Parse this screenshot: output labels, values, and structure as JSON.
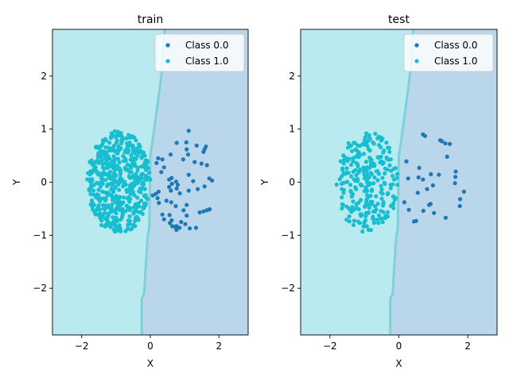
{
  "chart_data": [
    {
      "type": "scatter",
      "title": "train",
      "xlabel": "X",
      "ylabel": "Y",
      "xlim": [
        -2.85,
        2.85
      ],
      "ylim": [
        -2.88,
        2.88
      ],
      "xticks": [
        -2,
        0,
        2
      ],
      "yticks": [
        -2,
        -1,
        0,
        1,
        2
      ],
      "grid": false,
      "legend": "top-right",
      "region_colors": {
        "class_1": "#b8eaf0",
        "class_0": "#bad6ea",
        "boundary": "#7fd0dd"
      },
      "boundary": [
        [
          -0.25,
          -2.88
        ],
        [
          -0.25,
          -2.2
        ],
        [
          -0.18,
          -2.1
        ],
        [
          -0.08,
          -1.05
        ],
        [
          -0.03,
          -0.85
        ],
        [
          0.0,
          0.5
        ],
        [
          0.08,
          0.85
        ],
        [
          0.28,
          1.8
        ],
        [
          0.35,
          2.2
        ],
        [
          0.42,
          2.88
        ]
      ],
      "series": [
        {
          "name": "Class 0.0",
          "color": "#1f77b4",
          "points": [
            [
              1.12,
              0.97
            ],
            [
              1.05,
              0.75
            ],
            [
              0.77,
              0.74
            ],
            [
              1.35,
              0.69
            ],
            [
              1.62,
              0.67
            ],
            [
              1.58,
              0.62
            ],
            [
              1.06,
              0.62
            ],
            [
              1.55,
              0.57
            ],
            [
              1.1,
              0.52
            ],
            [
              0.59,
              0.52
            ],
            [
              0.96,
              0.43
            ],
            [
              0.23,
              0.45
            ],
            [
              0.35,
              0.43
            ],
            [
              0.18,
              0.36
            ],
            [
              1.29,
              0.38
            ],
            [
              1.49,
              0.35
            ],
            [
              1.65,
              0.32
            ],
            [
              0.4,
              0.28
            ],
            [
              0.32,
              0.19
            ],
            [
              1.12,
              0.14
            ],
            [
              0.62,
              0.08
            ],
            [
              0.55,
              0.05
            ],
            [
              1.72,
              0.07
            ],
            [
              0.75,
              0.01
            ],
            [
              0.63,
              -0.03
            ],
            [
              1.8,
              0.03
            ],
            [
              1.25,
              0.02
            ],
            [
              0.8,
              -0.05
            ],
            [
              0.55,
              -0.09
            ],
            [
              1.58,
              -0.08
            ],
            [
              1.38,
              -0.13
            ],
            [
              0.77,
              -0.12
            ],
            [
              1.12,
              -0.16
            ],
            [
              0.6,
              -0.16
            ],
            [
              0.24,
              -0.18
            ],
            [
              0.16,
              -0.22
            ],
            [
              0.86,
              -0.21
            ],
            [
              0.07,
              -0.25
            ],
            [
              0.21,
              -0.3
            ],
            [
              0.47,
              -0.35
            ],
            [
              0.61,
              -0.38
            ],
            [
              0.25,
              -0.39
            ],
            [
              1.06,
              -0.43
            ],
            [
              0.74,
              -0.45
            ],
            [
              1.73,
              -0.51
            ],
            [
              1.65,
              -0.53
            ],
            [
              0.97,
              -0.53
            ],
            [
              1.55,
              -0.55
            ],
            [
              1.44,
              -0.57
            ],
            [
              0.35,
              -0.61
            ],
            [
              0.56,
              -0.62
            ],
            [
              1.06,
              -0.63
            ],
            [
              0.4,
              -0.7
            ],
            [
              0.62,
              -0.72
            ],
            [
              0.9,
              -0.75
            ],
            [
              0.57,
              -0.77
            ],
            [
              1.02,
              -0.79
            ],
            [
              0.64,
              -0.83
            ],
            [
              0.77,
              -0.83
            ],
            [
              1.33,
              -0.86
            ],
            [
              0.72,
              -0.84
            ],
            [
              0.85,
              -0.86
            ],
            [
              1.15,
              -0.87
            ],
            [
              0.76,
              -0.9
            ]
          ]
        },
        {
          "name": "Class 1.0",
          "color": "#17becf",
          "seed": 7,
          "count": 520,
          "center": [
            -0.92,
            0.0
          ],
          "radius": [
            0.92,
            0.97
          ]
        }
      ]
    },
    {
      "type": "scatter",
      "title": "test",
      "xlabel": "X",
      "ylabel": "Y",
      "xlim": [
        -2.85,
        2.85
      ],
      "ylim": [
        -2.88,
        2.88
      ],
      "xticks": [
        -2,
        0,
        2
      ],
      "yticks": [
        -2,
        -1,
        0,
        1,
        2
      ],
      "grid": false,
      "legend": "top-right",
      "region_colors": {
        "class_1": "#b8eaf0",
        "class_0": "#bad6ea",
        "boundary": "#7fd0dd"
      },
      "boundary": [
        [
          -0.25,
          -2.88
        ],
        [
          -0.25,
          -2.2
        ],
        [
          -0.18,
          -2.1
        ],
        [
          -0.08,
          -1.05
        ],
        [
          -0.03,
          -0.85
        ],
        [
          0.0,
          0.5
        ],
        [
          0.08,
          0.85
        ],
        [
          0.28,
          1.8
        ],
        [
          0.35,
          2.2
        ],
        [
          0.42,
          2.88
        ]
      ],
      "series": [
        {
          "name": "Class 0.0",
          "color": "#1f77b4",
          "points": [
            [
              0.7,
              0.9
            ],
            [
              0.76,
              0.87
            ],
            [
              1.2,
              0.79
            ],
            [
              1.25,
              0.77
            ],
            [
              1.35,
              0.73
            ],
            [
              1.48,
              0.72
            ],
            [
              1.4,
              0.48
            ],
            [
              0.22,
              0.39
            ],
            [
              0.59,
              0.27
            ],
            [
              1.65,
              0.2
            ],
            [
              0.93,
              0.15
            ],
            [
              1.16,
              0.14
            ],
            [
              1.64,
              0.1
            ],
            [
              0.27,
              0.07
            ],
            [
              0.57,
              0.09
            ],
            [
              0.7,
              0.05
            ],
            [
              1.63,
              -0.02
            ],
            [
              0.99,
              -0.06
            ],
            [
              0.82,
              -0.13
            ],
            [
              1.89,
              -0.18
            ],
            [
              0.55,
              -0.2
            ],
            [
              1.78,
              -0.32
            ],
            [
              0.16,
              -0.38
            ],
            [
              0.92,
              -0.41
            ],
            [
              0.88,
              -0.43
            ],
            [
              1.77,
              -0.45
            ],
            [
              0.29,
              -0.52
            ],
            [
              0.71,
              -0.54
            ],
            [
              1.02,
              -0.58
            ],
            [
              1.36,
              -0.67
            ],
            [
              0.5,
              -0.73
            ],
            [
              0.44,
              -0.74
            ]
          ]
        },
        {
          "name": "Class 1.0",
          "color": "#17becf",
          "seed": 19,
          "count": 260,
          "center": [
            -0.92,
            0.0
          ],
          "radius": [
            0.9,
            0.96
          ]
        }
      ]
    }
  ]
}
